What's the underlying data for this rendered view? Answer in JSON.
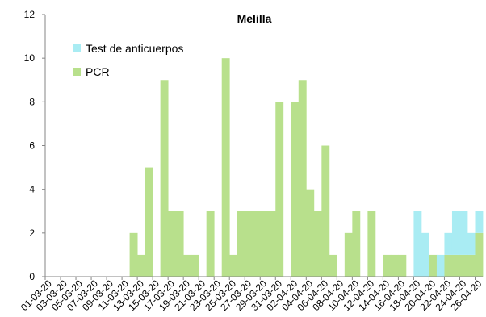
{
  "chart_data": {
    "type": "bar",
    "stacked": true,
    "title": "Melilla",
    "xlabel": "",
    "ylabel": "",
    "ylim": [
      0,
      12
    ],
    "yticks": [
      0,
      2,
      4,
      6,
      8,
      10,
      12
    ],
    "grid": false,
    "legend_position": "top-left",
    "x_tick_labels": [
      "01-03-20",
      "03-03-20",
      "05-03-20",
      "07-03-20",
      "09-03-20",
      "11-03-20",
      "13-03-20",
      "15-03-20",
      "17-03-20",
      "19-03-20",
      "21-03-20",
      "23-03-20",
      "25-03-20",
      "27-03-20",
      "29-03-20",
      "31-03-20",
      "02-04-20",
      "04-04-20",
      "06-04-20",
      "08-04-20",
      "10-04-20",
      "12-04-20",
      "14-04-20",
      "16-04-20",
      "18-04-20",
      "20-04-20",
      "22-04-20",
      "24-04-20",
      "26-04-20"
    ],
    "categories": [
      "01-03-20",
      "02-03-20",
      "03-03-20",
      "04-03-20",
      "05-03-20",
      "06-03-20",
      "07-03-20",
      "08-03-20",
      "09-03-20",
      "10-03-20",
      "11-03-20",
      "12-03-20",
      "13-03-20",
      "14-03-20",
      "15-03-20",
      "16-03-20",
      "17-03-20",
      "18-03-20",
      "19-03-20",
      "20-03-20",
      "21-03-20",
      "22-03-20",
      "23-03-20",
      "24-03-20",
      "25-03-20",
      "26-03-20",
      "27-03-20",
      "28-03-20",
      "29-03-20",
      "30-03-20",
      "31-03-20",
      "01-04-20",
      "02-04-20",
      "03-04-20",
      "04-04-20",
      "05-04-20",
      "06-04-20",
      "07-04-20",
      "08-04-20",
      "09-04-20",
      "10-04-20",
      "11-04-20",
      "12-04-20",
      "13-04-20",
      "14-04-20",
      "15-04-20",
      "16-04-20",
      "17-04-20",
      "18-04-20",
      "19-04-20",
      "20-04-20",
      "21-04-20",
      "22-04-20",
      "23-04-20",
      "24-04-20",
      "25-04-20",
      "26-04-20"
    ],
    "series": [
      {
        "name": "PCR",
        "color": "#b8e08c",
        "values": [
          0,
          0,
          0,
          0,
          0,
          0,
          0,
          0,
          0,
          0,
          0,
          2,
          1,
          5,
          0,
          9,
          3,
          3,
          1,
          1,
          0,
          3,
          0,
          10,
          1,
          3,
          3,
          3,
          3,
          3,
          8,
          0,
          8,
          9,
          4,
          3,
          6,
          1,
          0,
          2,
          3,
          0,
          3,
          0,
          1,
          1,
          1,
          0,
          0,
          0,
          1,
          0,
          1,
          1,
          1,
          1,
          2
        ]
      },
      {
        "name": "Test de anticuerpos",
        "color": "#a9ecf3",
        "values": [
          0,
          0,
          0,
          0,
          0,
          0,
          0,
          0,
          0,
          0,
          0,
          0,
          0,
          0,
          0,
          0,
          0,
          0,
          0,
          0,
          0,
          0,
          0,
          0,
          0,
          0,
          0,
          0,
          0,
          0,
          0,
          0,
          0,
          0,
          0,
          0,
          0,
          0,
          0,
          0,
          0,
          0,
          0,
          0,
          0,
          0,
          0,
          0,
          3,
          2,
          0,
          1,
          1,
          2,
          2,
          1,
          1
        ]
      }
    ]
  }
}
